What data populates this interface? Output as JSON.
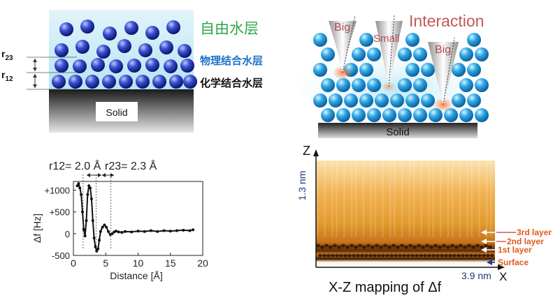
{
  "left_diagram": {
    "title_free": "自由水层",
    "title_physical": "物理结合水层",
    "title_chemical": "化学结合水层",
    "solid_label": "Solid",
    "r23_label": "r",
    "r23_sub": "23",
    "r12_label": "r",
    "r12_sub": "12"
  },
  "right_diagram": {
    "title": "Interaction",
    "tip_left": "Big",
    "tip_middle": "Small",
    "tip_right": "Big",
    "solid_label": "Solid"
  },
  "mapping": {
    "z_axis": "Z",
    "x_axis": "X",
    "z_scale": "1.3 nm",
    "x_scale": "3.9 nm",
    "caption": "X-Z mapping of Δf",
    "layers": [
      "3rd layer",
      "2nd layer",
      "1st layer",
      "Surface"
    ]
  },
  "chart_data": {
    "type": "line",
    "r12_text": "r12= 2.0 Å",
    "r23_text": "r23= 2.3 Å",
    "xlabel": "Distance [Å]",
    "ylabel": "Δf [Hz]",
    "xlim": [
      0,
      20
    ],
    "ylim": [
      -500,
      1200
    ],
    "xticks": [
      0,
      5,
      10,
      15,
      20
    ],
    "yticks": [
      1000,
      500,
      0,
      -500
    ],
    "ytick_labels": [
      "+1000",
      "+500",
      "0",
      "-500"
    ],
    "dashed_x": [
      1.5,
      3.5,
      5.8
    ],
    "x": [
      0.6,
      0.8,
      1.0,
      1.2,
      1.4,
      1.6,
      1.8,
      2.0,
      2.2,
      2.4,
      2.6,
      2.8,
      3.0,
      3.2,
      3.4,
      3.6,
      3.8,
      4.0,
      4.2,
      4.5,
      4.8,
      5.1,
      5.4,
      5.7,
      6.0,
      6.3,
      6.6,
      7.0,
      7.5,
      8.0,
      9.0,
      10.0,
      11.0,
      12.0,
      13.0,
      14.0,
      15.0,
      16.0,
      17.0,
      18.0,
      18.5
    ],
    "y": [
      1100,
      1150,
      1050,
      900,
      500,
      100,
      -50,
      300,
      900,
      1100,
      1050,
      800,
      300,
      -100,
      -300,
      -400,
      -350,
      -150,
      50,
      150,
      200,
      150,
      50,
      -20,
      0,
      40,
      60,
      40,
      30,
      50,
      40,
      60,
      50,
      70,
      50,
      70,
      60,
      70,
      80,
      70,
      90
    ]
  }
}
